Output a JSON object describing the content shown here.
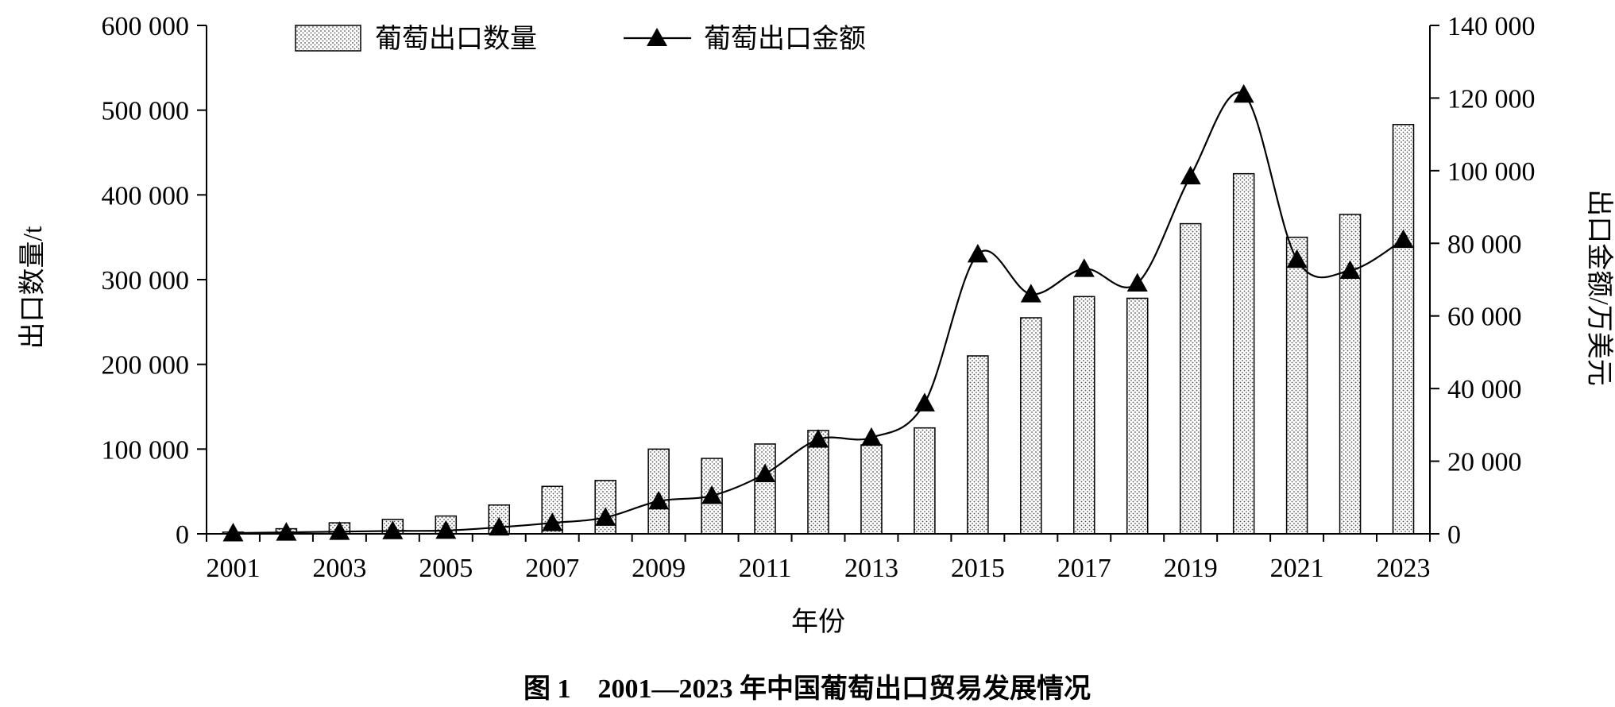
{
  "chart_data": {
    "type": "bar",
    "title": "图 1　2001—2023 年中国葡萄出口贸易发展情况",
    "xlabel": "年份",
    "ylabel": "出口数量/t",
    "y2label": "出口金额/万美元",
    "categories": [
      "2001",
      "2002",
      "2003",
      "2004",
      "2005",
      "2006",
      "2007",
      "2008",
      "2009",
      "2010",
      "2011",
      "2012",
      "2013",
      "2014",
      "2015",
      "2016",
      "2017",
      "2018",
      "2019",
      "2020",
      "2021",
      "2022",
      "2023"
    ],
    "x_tick_labels": [
      "2001",
      "2003",
      "2005",
      "2007",
      "2009",
      "2011",
      "2013",
      "2015",
      "2017",
      "2019",
      "2021",
      "2023"
    ],
    "ylim": [
      0,
      600000
    ],
    "y_ticks": [
      0,
      100000,
      200000,
      300000,
      400000,
      500000,
      600000
    ],
    "y_tick_labels": [
      "0",
      "100 000",
      "200 000",
      "300 000",
      "400 000",
      "500 000",
      "600 000"
    ],
    "y2lim": [
      0,
      140000
    ],
    "y2_ticks": [
      0,
      20000,
      40000,
      60000,
      80000,
      100000,
      120000,
      140000
    ],
    "y2_tick_labels": [
      "0",
      "20 000",
      "40 000",
      "60 000",
      "80 000",
      "100 000",
      "120 000",
      "140 000"
    ],
    "series": [
      {
        "name": "葡萄出口数量",
        "type": "bar",
        "axis": "left",
        "values": [
          2000,
          6000,
          13000,
          17000,
          21000,
          34000,
          56000,
          63000,
          100000,
          89000,
          106000,
          122000,
          105000,
          125000,
          210000,
          255000,
          280000,
          278000,
          366000,
          425000,
          350000,
          377000,
          483000
        ]
      },
      {
        "name": "葡萄出口金额",
        "type": "line",
        "marker": "triangle",
        "axis": "right",
        "values": [
          200,
          400,
          600,
          800,
          900,
          1800,
          3000,
          4500,
          9000,
          10500,
          16500,
          26000,
          26500,
          36000,
          77000,
          66000,
          73000,
          69000,
          98500,
          121000,
          75500,
          72500,
          81000
        ]
      }
    ],
    "legend_position": "top"
  }
}
